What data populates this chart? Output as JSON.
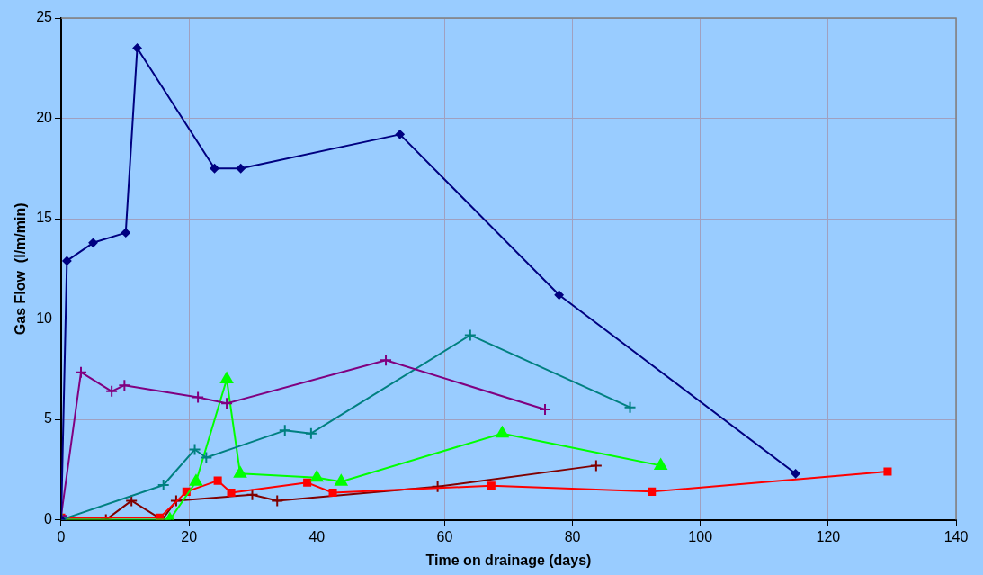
{
  "chart_data": {
    "type": "line",
    "xlabel": "Time on drainage (days)",
    "ylabel": "Gas Flow  (l/m/min)",
    "xlim": [
      0,
      140
    ],
    "xticks": [
      0,
      20,
      40,
      60,
      80,
      100,
      120,
      140
    ],
    "ylim": [
      0,
      25
    ],
    "yticks": [
      0,
      5,
      10,
      15,
      20,
      25
    ],
    "grid": true,
    "legend": false,
    "series": [
      {
        "color": "#000080",
        "marker": "diamond",
        "x": [
          0,
          0.9,
          5,
          10.1,
          11.9,
          24,
          28.1,
          53,
          77.9,
          114.9
        ],
        "values": [
          0,
          12.9,
          13.8,
          14.3,
          23.5,
          17.5,
          17.5,
          19.2,
          11.2,
          2.3
        ]
      },
      {
        "color": "#800080",
        "marker": "cross",
        "x": [
          0,
          3.1,
          7.9,
          9.9,
          21.4,
          25.9,
          50.8,
          75.7
        ],
        "values": [
          0.2,
          7.35,
          6.4,
          6.7,
          6.1,
          5.8,
          7.95,
          5.5
        ]
      },
      {
        "color": "#008080",
        "marker": "cross",
        "x": [
          0,
          16,
          20.9,
          22.7,
          35,
          39.1,
          64,
          89
        ],
        "values": [
          0,
          1.73,
          3.5,
          3.1,
          4.45,
          4.3,
          9.2,
          5.6
        ]
      },
      {
        "color": "#00ff00",
        "marker": "triangle",
        "x": [
          0,
          17,
          21.1,
          25.9,
          28,
          40,
          43.8,
          69,
          93.8
        ],
        "values": [
          0,
          0,
          1.9,
          7,
          2.3,
          2.1,
          1.9,
          4.3,
          2.7
        ]
      },
      {
        "color": "#ff0000",
        "marker": "square",
        "x": [
          0,
          15.4,
          19.6,
          24.5,
          26.6,
          38.5,
          42.5,
          67.3,
          92.4,
          129.3
        ],
        "values": [
          0.1,
          0.1,
          1.4,
          1.95,
          1.35,
          1.85,
          1.35,
          1.7,
          1.4,
          2.4
        ]
      },
      {
        "color": "#800000",
        "marker": "cross",
        "x": [
          0,
          7,
          11,
          15.8,
          18,
          29.9,
          33.8,
          58.9,
          83.7
        ],
        "values": [
          0,
          0,
          0.95,
          0,
          0.95,
          1.25,
          0.95,
          1.65,
          2.7
        ]
      }
    ]
  }
}
